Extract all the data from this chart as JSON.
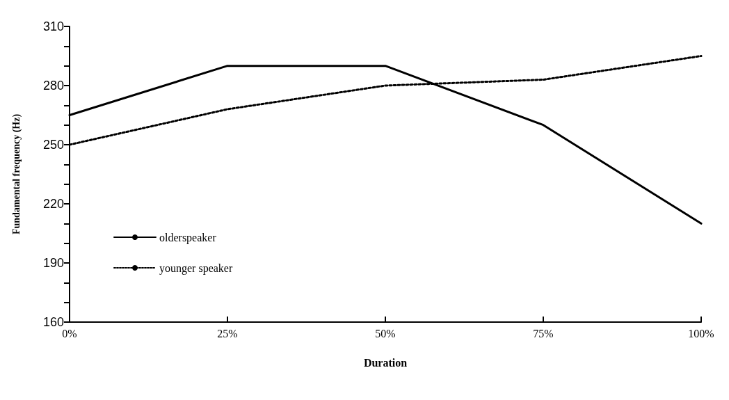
{
  "chart_data": {
    "type": "line",
    "xlabel": "Duration",
    "ylabel": "Fundamental frequency (Hz)",
    "categories": [
      "0%",
      "25%",
      "50%",
      "75%",
      "100%"
    ],
    "series": [
      {
        "name": "olderspeaker",
        "color": "#000000",
        "line_style": "solid",
        "values": [
          265,
          290,
          290,
          260,
          210
        ]
      },
      {
        "name": "younger speaker",
        "color": "#000000",
        "line_style": "dotted",
        "values": [
          250,
          268,
          280,
          283,
          295
        ]
      }
    ],
    "ylim": [
      160,
      310
    ],
    "yticks": [
      160,
      {
        "value": 170,
        "label": null
      },
      {
        "value": 180,
        "label": null
      },
      190,
      {
        "value": 200,
        "label": null
      },
      {
        "value": 210,
        "label": null
      },
      220,
      {
        "value": 230,
        "label": null
      },
      {
        "value": 240,
        "label": null
      },
      250,
      {
        "value": 260,
        "label": null
      },
      {
        "value": 270,
        "label": null
      },
      280,
      {
        "value": 290,
        "label": null
      },
      {
        "value": 300,
        "label": null
      },
      310
    ],
    "grid": false,
    "legend": "left",
    "marker": "none"
  }
}
